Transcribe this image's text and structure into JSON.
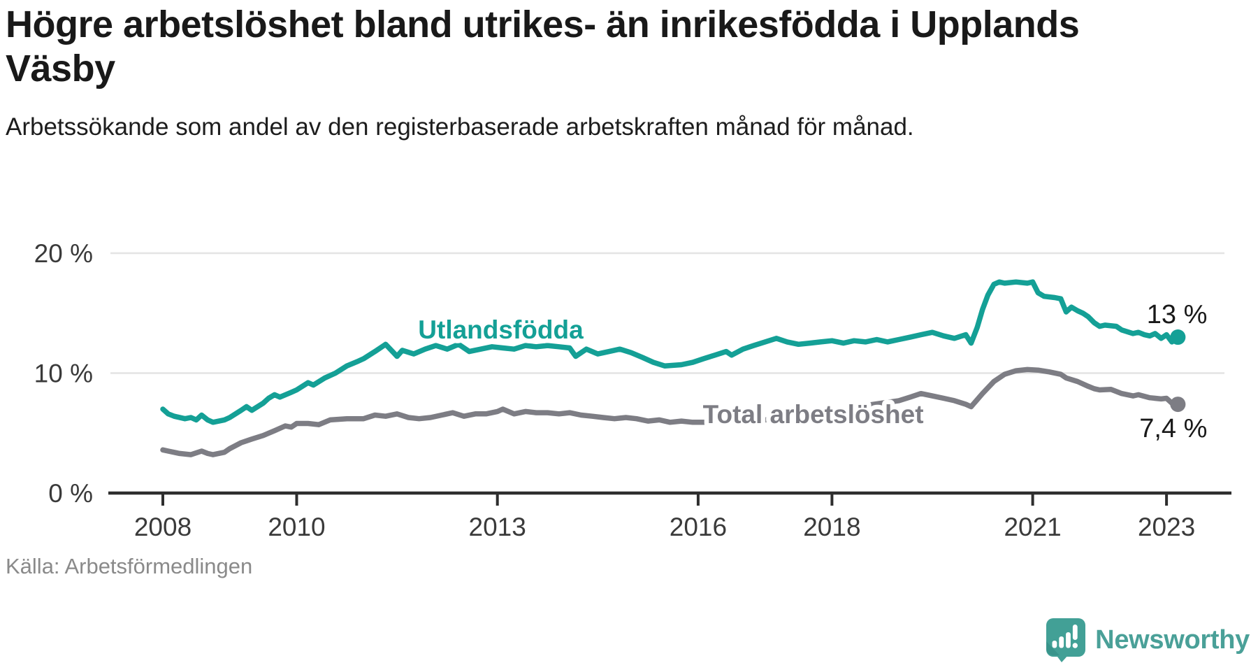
{
  "header": {
    "title": "Högre arbetslöshet bland utrikes- än inrikesfödda i Upplands Väsby",
    "subtitle": "Arbetssökande som andel av den registerbaserade arbetskraften månad för månad."
  },
  "footer": {
    "source": "Källa: Arbetsförmedlingen",
    "brand": "Newsworthy",
    "brand_icon": "newsworthy-chart-bubble-icon"
  },
  "colors": {
    "series_foreign": "#14a096",
    "series_total": "#7d7d84",
    "grid": "#e4e4e4",
    "axis": "#2e2e2e",
    "tick_label": "#3a3a3a",
    "end_label": "#191919",
    "brand": "#4aa098"
  },
  "chart_data": {
    "type": "line",
    "unit": "%",
    "x_range": [
      2007.8,
      2023.5
    ],
    "y_range": [
      0,
      21
    ],
    "grid": "horizontal-only",
    "legend_position": "inline-labels",
    "x_ticks": [
      {
        "year": 2008,
        "label": "2008"
      },
      {
        "year": 2010,
        "label": "2010"
      },
      {
        "year": 2013,
        "label": "2013"
      },
      {
        "year": 2016,
        "label": "2016"
      },
      {
        "year": 2018,
        "label": "2018"
      },
      {
        "year": 2021,
        "label": "2021"
      },
      {
        "year": 2023,
        "label": "2023"
      }
    ],
    "y_ticks": [
      {
        "value": 0,
        "label": "0 %"
      },
      {
        "value": 10,
        "label": "10 %"
      },
      {
        "value": 20,
        "label": "20 %"
      }
    ],
    "series": [
      {
        "id": "total",
        "label": "Total arbetslöshet",
        "color_key": "series_total",
        "end_label": "7,4 %",
        "last_value": 7.4,
        "label_pos": {
          "t": 2016.07,
          "v": 6.6,
          "anchor": "start"
        },
        "points": [
          [
            2008.0,
            3.6
          ],
          [
            2008.08,
            3.5
          ],
          [
            2008.25,
            3.3
          ],
          [
            2008.42,
            3.2
          ],
          [
            2008.58,
            3.5
          ],
          [
            2008.67,
            3.3
          ],
          [
            2008.75,
            3.2
          ],
          [
            2008.92,
            3.4
          ],
          [
            2009.0,
            3.7
          ],
          [
            2009.17,
            4.2
          ],
          [
            2009.33,
            4.5
          ],
          [
            2009.5,
            4.8
          ],
          [
            2009.67,
            5.2
          ],
          [
            2009.83,
            5.6
          ],
          [
            2009.92,
            5.5
          ],
          [
            2010.0,
            5.8
          ],
          [
            2010.17,
            5.8
          ],
          [
            2010.33,
            5.7
          ],
          [
            2010.5,
            6.1
          ],
          [
            2010.75,
            6.2
          ],
          [
            2011.0,
            6.2
          ],
          [
            2011.17,
            6.5
          ],
          [
            2011.33,
            6.4
          ],
          [
            2011.5,
            6.6
          ],
          [
            2011.67,
            6.3
          ],
          [
            2011.83,
            6.2
          ],
          [
            2012.0,
            6.3
          ],
          [
            2012.17,
            6.5
          ],
          [
            2012.33,
            6.7
          ],
          [
            2012.5,
            6.4
          ],
          [
            2012.67,
            6.6
          ],
          [
            2012.83,
            6.6
          ],
          [
            2013.0,
            6.8
          ],
          [
            2013.08,
            7.0
          ],
          [
            2013.25,
            6.6
          ],
          [
            2013.42,
            6.8
          ],
          [
            2013.58,
            6.7
          ],
          [
            2013.75,
            6.7
          ],
          [
            2013.92,
            6.6
          ],
          [
            2014.08,
            6.7
          ],
          [
            2014.25,
            6.5
          ],
          [
            2014.42,
            6.4
          ],
          [
            2014.58,
            6.3
          ],
          [
            2014.75,
            6.2
          ],
          [
            2014.92,
            6.3
          ],
          [
            2015.08,
            6.2
          ],
          [
            2015.25,
            6.0
          ],
          [
            2015.42,
            6.1
          ],
          [
            2015.58,
            5.9
          ],
          [
            2015.75,
            6.0
          ],
          [
            2015.92,
            5.9
          ],
          [
            2016.08,
            5.9
          ],
          [
            2016.25,
            6.0
          ],
          [
            2016.5,
            5.9
          ],
          [
            2016.75,
            6.0
          ],
          [
            2017.0,
            6.1
          ],
          [
            2017.25,
            6.2
          ],
          [
            2017.5,
            6.4
          ],
          [
            2017.75,
            6.6
          ],
          [
            2018.0,
            6.8
          ],
          [
            2018.25,
            7.1
          ],
          [
            2018.5,
            7.3
          ],
          [
            2018.75,
            7.5
          ],
          [
            2019.0,
            7.7
          ],
          [
            2019.17,
            8.0
          ],
          [
            2019.33,
            8.3
          ],
          [
            2019.5,
            8.1
          ],
          [
            2019.67,
            7.9
          ],
          [
            2019.83,
            7.7
          ],
          [
            2020.0,
            7.4
          ],
          [
            2020.08,
            7.2
          ],
          [
            2020.25,
            8.3
          ],
          [
            2020.42,
            9.3
          ],
          [
            2020.58,
            9.9
          ],
          [
            2020.75,
            10.2
          ],
          [
            2020.92,
            10.3
          ],
          [
            2021.08,
            10.25
          ],
          [
            2021.25,
            10.1
          ],
          [
            2021.42,
            9.9
          ],
          [
            2021.5,
            9.6
          ],
          [
            2021.67,
            9.3
          ],
          [
            2021.83,
            8.9
          ],
          [
            2021.92,
            8.7
          ],
          [
            2022.0,
            8.6
          ],
          [
            2022.17,
            8.65
          ],
          [
            2022.33,
            8.3
          ],
          [
            2022.5,
            8.1
          ],
          [
            2022.58,
            8.2
          ],
          [
            2022.75,
            7.95
          ],
          [
            2022.92,
            7.85
          ],
          [
            2023.0,
            7.9
          ],
          [
            2023.08,
            7.5
          ],
          [
            2023.17,
            7.4
          ]
        ]
      },
      {
        "id": "utlandsfodda",
        "label": "Utlandsfödda",
        "color_key": "series_foreign",
        "end_label": "13 %",
        "last_value": 13,
        "label_pos": {
          "t": 2013.05,
          "v": 13.65,
          "anchor": "middle"
        },
        "points": [
          [
            2008.0,
            7.0
          ],
          [
            2008.08,
            6.6
          ],
          [
            2008.17,
            6.4
          ],
          [
            2008.33,
            6.2
          ],
          [
            2008.42,
            6.3
          ],
          [
            2008.5,
            6.1
          ],
          [
            2008.58,
            6.5
          ],
          [
            2008.67,
            6.1
          ],
          [
            2008.75,
            5.9
          ],
          [
            2008.92,
            6.1
          ],
          [
            2009.0,
            6.3
          ],
          [
            2009.17,
            6.9
          ],
          [
            2009.25,
            7.2
          ],
          [
            2009.33,
            6.9
          ],
          [
            2009.5,
            7.5
          ],
          [
            2009.58,
            7.9
          ],
          [
            2009.67,
            8.2
          ],
          [
            2009.75,
            8.0
          ],
          [
            2009.92,
            8.4
          ],
          [
            2010.0,
            8.6
          ],
          [
            2010.17,
            9.2
          ],
          [
            2010.25,
            9.0
          ],
          [
            2010.42,
            9.6
          ],
          [
            2010.58,
            10.0
          ],
          [
            2010.75,
            10.6
          ],
          [
            2010.92,
            11.0
          ],
          [
            2011.0,
            11.2
          ],
          [
            2011.17,
            11.8
          ],
          [
            2011.33,
            12.4
          ],
          [
            2011.5,
            11.4
          ],
          [
            2011.58,
            11.9
          ],
          [
            2011.75,
            11.6
          ],
          [
            2011.92,
            12.0
          ],
          [
            2012.08,
            12.3
          ],
          [
            2012.25,
            12.0
          ],
          [
            2012.42,
            12.4
          ],
          [
            2012.58,
            11.8
          ],
          [
            2012.75,
            12.0
          ],
          [
            2012.92,
            12.2
          ],
          [
            2013.08,
            12.1
          ],
          [
            2013.25,
            12.0
          ],
          [
            2013.42,
            12.3
          ],
          [
            2013.58,
            12.2
          ],
          [
            2013.75,
            12.3
          ],
          [
            2013.92,
            12.2
          ],
          [
            2014.08,
            12.1
          ],
          [
            2014.17,
            11.4
          ],
          [
            2014.33,
            12.0
          ],
          [
            2014.5,
            11.6
          ],
          [
            2014.67,
            11.8
          ],
          [
            2014.83,
            12.0
          ],
          [
            2015.0,
            11.7
          ],
          [
            2015.17,
            11.3
          ],
          [
            2015.33,
            10.9
          ],
          [
            2015.5,
            10.6
          ],
          [
            2015.75,
            10.7
          ],
          [
            2015.92,
            10.9
          ],
          [
            2016.08,
            11.2
          ],
          [
            2016.25,
            11.5
          ],
          [
            2016.42,
            11.8
          ],
          [
            2016.5,
            11.5
          ],
          [
            2016.67,
            12.0
          ],
          [
            2016.83,
            12.3
          ],
          [
            2017.0,
            12.6
          ],
          [
            2017.17,
            12.9
          ],
          [
            2017.33,
            12.6
          ],
          [
            2017.5,
            12.4
          ],
          [
            2017.67,
            12.5
          ],
          [
            2017.83,
            12.6
          ],
          [
            2018.0,
            12.7
          ],
          [
            2018.17,
            12.5
          ],
          [
            2018.33,
            12.7
          ],
          [
            2018.5,
            12.6
          ],
          [
            2018.67,
            12.8
          ],
          [
            2018.83,
            12.6
          ],
          [
            2019.0,
            12.8
          ],
          [
            2019.17,
            13.0
          ],
          [
            2019.33,
            13.2
          ],
          [
            2019.5,
            13.4
          ],
          [
            2019.67,
            13.1
          ],
          [
            2019.83,
            12.9
          ],
          [
            2020.0,
            13.2
          ],
          [
            2020.08,
            12.5
          ],
          [
            2020.17,
            13.8
          ],
          [
            2020.25,
            15.3
          ],
          [
            2020.33,
            16.5
          ],
          [
            2020.42,
            17.4
          ],
          [
            2020.5,
            17.6
          ],
          [
            2020.58,
            17.5
          ],
          [
            2020.75,
            17.6
          ],
          [
            2020.92,
            17.5
          ],
          [
            2021.0,
            17.6
          ],
          [
            2021.08,
            16.7
          ],
          [
            2021.17,
            16.4
          ],
          [
            2021.33,
            16.3
          ],
          [
            2021.42,
            16.2
          ],
          [
            2021.5,
            15.1
          ],
          [
            2021.58,
            15.5
          ],
          [
            2021.67,
            15.2
          ],
          [
            2021.75,
            15.0
          ],
          [
            2021.83,
            14.7
          ],
          [
            2021.92,
            14.2
          ],
          [
            2022.0,
            13.9
          ],
          [
            2022.08,
            14.0
          ],
          [
            2022.25,
            13.9
          ],
          [
            2022.33,
            13.6
          ],
          [
            2022.5,
            13.3
          ],
          [
            2022.58,
            13.4
          ],
          [
            2022.67,
            13.2
          ],
          [
            2022.75,
            13.1
          ],
          [
            2022.83,
            13.3
          ],
          [
            2022.92,
            12.9
          ],
          [
            2023.0,
            13.2
          ],
          [
            2023.08,
            12.6
          ],
          [
            2023.17,
            13.0
          ]
        ]
      }
    ]
  }
}
